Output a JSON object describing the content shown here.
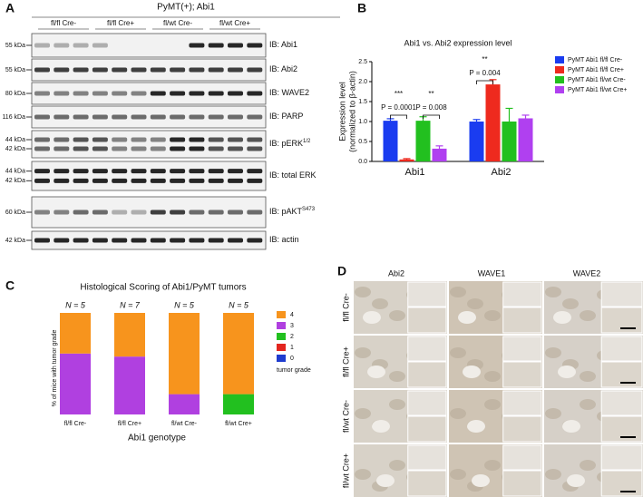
{
  "panels": {
    "a": "A",
    "b": "B",
    "c": "C",
    "d": "D"
  },
  "blot": {
    "header": "PyMT(+); Abi1",
    "groups": [
      "fl/fl Cre-",
      "fl/fl Cre+",
      "fl/wt Cre-",
      "fl/wt Cre+"
    ],
    "rows": [
      {
        "markers": [
          "55 kDa"
        ],
        "label": "IB: Abi1"
      },
      {
        "markers": [
          "55 kDa"
        ],
        "label": "IB: Abi2"
      },
      {
        "markers": [
          "80 kDa"
        ],
        "label": "IB: WAVE2"
      },
      {
        "markers": [
          "116 kDa"
        ],
        "label": "IB: PARP"
      },
      {
        "markers": [
          "44 kDa",
          "42 kDa"
        ],
        "label": "IB: pERK",
        "sup": "1/2"
      },
      {
        "markers": [
          "44 kDa",
          "42 kDa"
        ],
        "label": "IB: total ERK"
      },
      {
        "markers": [
          "60 kDa"
        ],
        "label": "IB: pAKT",
        "sup": "S473"
      },
      {
        "markers": [
          "42 kDa"
        ],
        "label": "IB: actin"
      }
    ]
  },
  "chart_data": [
    {
      "type": "bar",
      "title": "Abi1 vs. Abi2 expression level",
      "y_label": [
        "Expression level",
        "(normalized to β-actin)"
      ],
      "categories": [
        "Abi1",
        "Abi2"
      ],
      "series": [
        {
          "name": "PyMT Abi1 fl/fl Cre-",
          "color": "#1a3cf0",
          "values": [
            1.02,
            1.0
          ],
          "errors": [
            0.05,
            0.05
          ]
        },
        {
          "name": "PyMT Abi1 fl/fl Cre+",
          "color": "#ee2a1e",
          "values": [
            0.05,
            1.93
          ],
          "errors": [
            0.02,
            0.12
          ]
        },
        {
          "name": "PyMT Abi1 fl/wt Cre-",
          "color": "#22c01f",
          "values": [
            1.02,
            1.0
          ],
          "errors": [
            0.1,
            0.33
          ]
        },
        {
          "name": "PyMT Abi1 fl/wt Cre+",
          "color": "#b040f0",
          "values": [
            0.32,
            1.08
          ],
          "errors": [
            0.07,
            0.08
          ]
        }
      ],
      "ylim": [
        0,
        2.5
      ],
      "yticks": [
        {
          "value": 0,
          "label": "0.0"
        },
        {
          "value": 0.5,
          "label": "0.5"
        },
        {
          "value": 1,
          "label": "1.0"
        },
        {
          "value": 1.5,
          "label": "1.5"
        },
        {
          "value": 2,
          "label": "2.0"
        },
        {
          "value": 2.5,
          "label": "2.5"
        }
      ],
      "annotations": [
        "***",
        "P = 0.0001",
        "**",
        "P = 0.008",
        "**",
        "P = 0.004"
      ],
      "legend": "right"
    },
    {
      "type": "stacked_bar",
      "title": "Histological Scoring of Abi1/PyMT tumors",
      "y_label": "% of mice with tumor grade",
      "x_label": "Abi1 genotype",
      "categories": [
        "fl/fl Cre-",
        "fl/fl Cre+",
        "fl/wt Cre-",
        "fl/wt Cre+"
      ],
      "n_labels": [
        "N = 5",
        "N = 7",
        "N = 5",
        "N = 5"
      ],
      "legend_title": "tumor grade",
      "series": [
        {
          "name": "4",
          "color": "#f7941d",
          "values": [
            40,
            43,
            80,
            80
          ]
        },
        {
          "name": "3",
          "color": "#b040e0",
          "values": [
            60,
            57,
            20,
            0
          ]
        },
        {
          "name": "2",
          "color": "#22c01f",
          "values": [
            0,
            0,
            0,
            20
          ]
        },
        {
          "name": "1",
          "color": "#e3261f",
          "values": [
            0,
            0,
            0,
            0
          ]
        },
        {
          "name": "0",
          "color": "#1f3ccf",
          "values": [
            0,
            0,
            0,
            0
          ]
        }
      ],
      "ylim": [
        0,
        100
      ],
      "legend": "right"
    }
  ],
  "histology": {
    "columns": [
      "Abi2",
      "WAVE1",
      "WAVE2"
    ],
    "rows": [
      "fl/fl Cre-",
      "fl/fl Cre+",
      "fl/wt Cre-",
      "fl/wt Cre+"
    ]
  }
}
